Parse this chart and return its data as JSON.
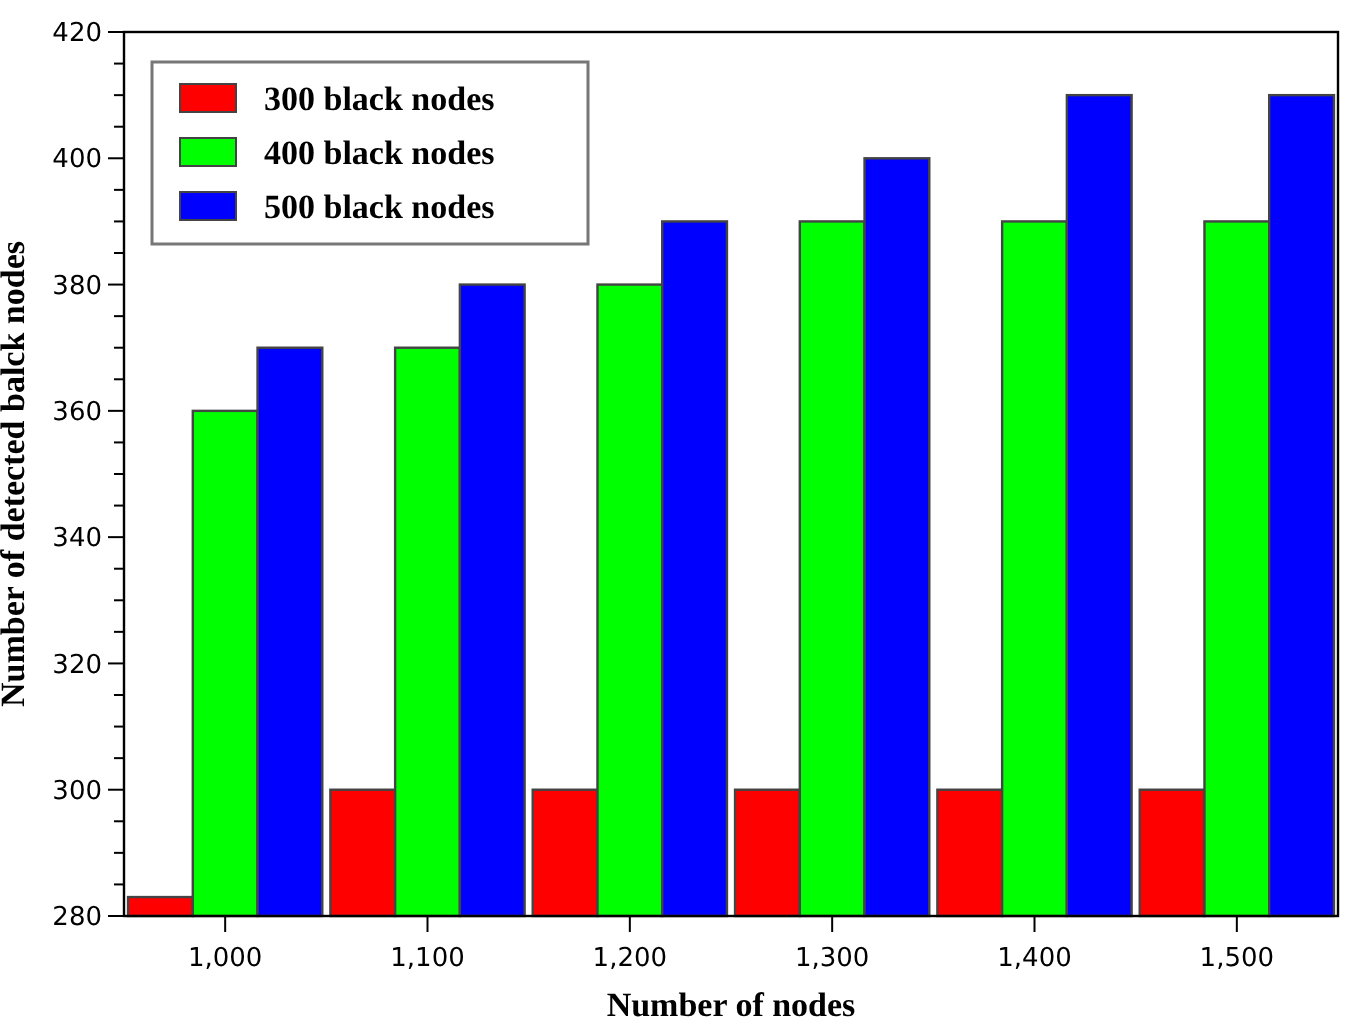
{
  "chart_data": {
    "type": "bar",
    "xlabel": "Number of nodes",
    "ylabel": "Number of detected balck nodes",
    "categories": [
      "1,000",
      "1,100",
      "1,200",
      "1,300",
      "1,400",
      "1,500"
    ],
    "series": [
      {
        "name": "300 black nodes",
        "color": "#ff0000",
        "values": [
          283,
          300,
          300,
          300,
          300,
          300
        ]
      },
      {
        "name": "400 black nodes",
        "color": "#00ff00",
        "values": [
          360,
          370,
          380,
          390,
          390,
          390
        ]
      },
      {
        "name": "500 black nodes",
        "color": "#0000ff",
        "values": [
          370,
          380,
          390,
          400,
          410,
          410
        ]
      }
    ],
    "ylim": [
      280,
      420
    ],
    "yticks": [
      280,
      300,
      320,
      340,
      360,
      380,
      400,
      420
    ],
    "grid": false,
    "legend": "top left"
  }
}
